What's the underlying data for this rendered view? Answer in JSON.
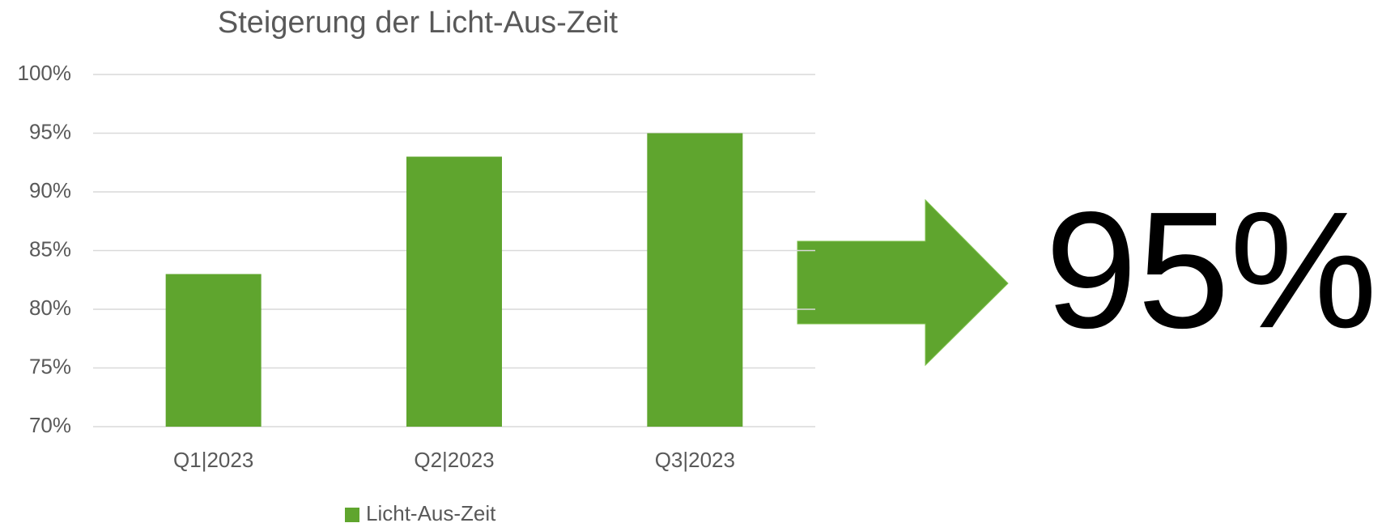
{
  "chart_data": {
    "type": "bar",
    "title": "Steigerung der Licht-Aus-Zeit",
    "categories": [
      "Q1|2023",
      "Q2|2023",
      "Q3|2023"
    ],
    "series": [
      {
        "name": "Licht-Aus-Zeit",
        "color": "#5fa52e",
        "values": [
          83,
          93,
          95
        ]
      }
    ],
    "ylim": [
      70,
      100
    ],
    "yticks": [
      {
        "value": 70,
        "label": "70%"
      },
      {
        "value": 75,
        "label": "75%"
      },
      {
        "value": 80,
        "label": "80%"
      },
      {
        "value": 85,
        "label": "85%"
      },
      {
        "value": 90,
        "label": "90%"
      },
      {
        "value": 95,
        "label": "95%"
      },
      {
        "value": 100,
        "label": "100%"
      }
    ],
    "grid": true,
    "legend": "bottom",
    "annotation": "95%"
  }
}
